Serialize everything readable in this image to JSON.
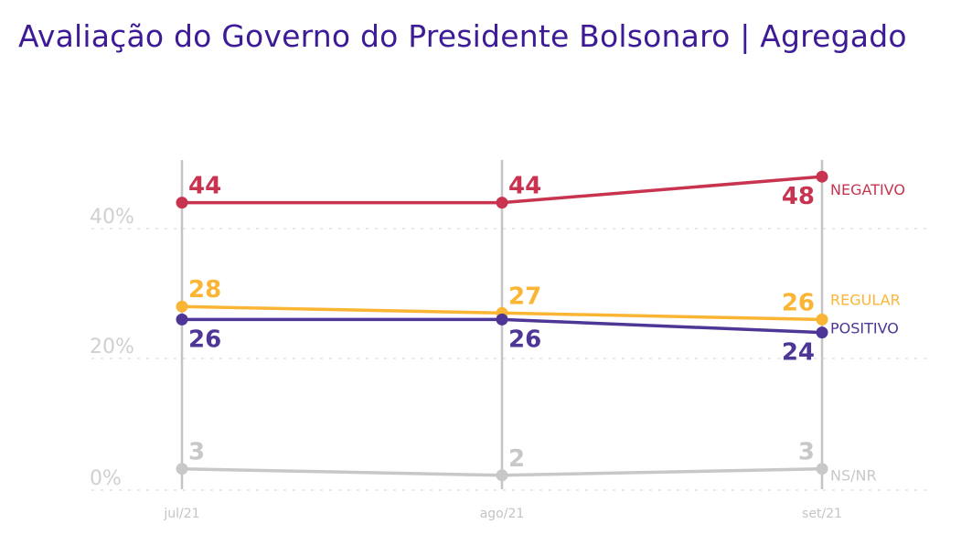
{
  "chart_data": {
    "type": "line",
    "title": "Avaliação do Governo do Presidente Bolsonaro | Agregado",
    "categories": [
      "jul/21",
      "ago/21",
      "set/21"
    ],
    "y_ticks": [
      "0%",
      "20%",
      "40%"
    ],
    "ylim": [
      0,
      50
    ],
    "grid": "horizontal dotted",
    "legend": "inline-right",
    "series": [
      {
        "name": "NEGATIVO",
        "values": [
          44,
          44,
          48
        ],
        "color": "#c8344f"
      },
      {
        "name": "REGULAR",
        "values": [
          28,
          27,
          26
        ],
        "color": "#fbb534"
      },
      {
        "name": "POSITIVO",
        "values": [
          26,
          26,
          24
        ],
        "color": "#4e3696"
      },
      {
        "name": "NS/NR",
        "values": [
          3,
          2,
          3
        ],
        "color": "#c8c8c8"
      }
    ]
  }
}
